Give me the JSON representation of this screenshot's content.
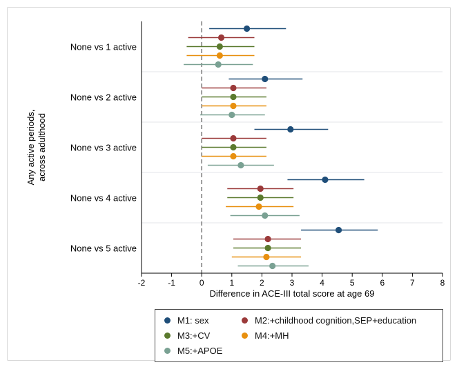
{
  "chart_data": {
    "type": "forest",
    "title": "",
    "xlabel": "Difference in ACE-III total score at age 69",
    "ylabel": "Any active periods,\nacross adulthood",
    "xlim": [
      -2,
      8
    ],
    "xticks": [
      -2,
      -1,
      0,
      1,
      2,
      3,
      4,
      5,
      6,
      7,
      8
    ],
    "reference_line": 0,
    "categories": [
      "None vs 1 active",
      "None vs 2 active",
      "None vs 3 active",
      "None vs 4 active",
      "None vs 5 active"
    ],
    "series": [
      {
        "name": "M1: sex",
        "color": "#1f4e79",
        "estimate": [
          1.5,
          2.1,
          2.95,
          4.1,
          4.55
        ],
        "lower": [
          0.25,
          0.9,
          1.75,
          2.85,
          3.3
        ],
        "upper": [
          2.8,
          3.35,
          4.2,
          5.4,
          5.85
        ]
      },
      {
        "name": "M2:+childhood cognition,SEP+education",
        "color": "#9b3a3a",
        "estimate": [
          0.65,
          1.05,
          1.05,
          1.95,
          2.2
        ],
        "lower": [
          -0.45,
          0.0,
          0.0,
          0.85,
          1.05
        ],
        "upper": [
          1.75,
          2.15,
          2.15,
          3.05,
          3.3
        ]
      },
      {
        "name": "M3:+CV",
        "color": "#5b7a2e",
        "estimate": [
          0.6,
          1.05,
          1.05,
          1.95,
          2.2
        ],
        "lower": [
          -0.5,
          0.0,
          0.0,
          0.85,
          1.05
        ],
        "upper": [
          1.75,
          2.15,
          2.15,
          3.05,
          3.3
        ]
      },
      {
        "name": "M4:+MH",
        "color": "#e8900f",
        "estimate": [
          0.6,
          1.05,
          1.05,
          1.9,
          2.15
        ],
        "lower": [
          -0.5,
          0.0,
          0.0,
          0.8,
          1.0
        ],
        "upper": [
          1.75,
          2.15,
          2.15,
          3.05,
          3.3
        ]
      },
      {
        "name": "M5:+APOE",
        "color": "#7aa193",
        "estimate": [
          0.55,
          1.0,
          1.3,
          2.1,
          2.35
        ],
        "lower": [
          -0.6,
          -0.05,
          0.2,
          0.95,
          1.2
        ],
        "upper": [
          1.7,
          2.1,
          2.4,
          3.25,
          3.55
        ]
      }
    ],
    "legend_position": "bottom",
    "grid": "horizontal separators between groups"
  }
}
